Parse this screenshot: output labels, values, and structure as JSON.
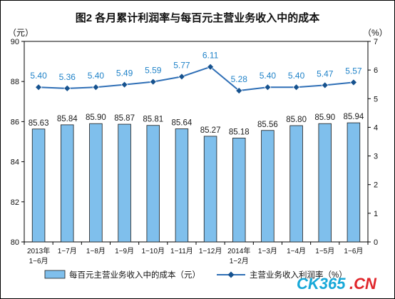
{
  "chart_data": {
    "type": "bar+line",
    "title": "图2  各月累计利润率与每百元主营业务收入中的成本",
    "left_axis": {
      "unit_label": "（元）",
      "ylim": [
        80,
        90
      ],
      "ticks": [
        "80",
        "82",
        "84",
        "86",
        "88",
        "90"
      ]
    },
    "right_axis": {
      "unit_label": "（%）",
      "ylim": [
        0,
        7
      ],
      "ticks": [
        "0",
        "1",
        "2",
        "3",
        "4",
        "5",
        "6",
        "7"
      ]
    },
    "categories": [
      [
        "2013年",
        "1−6月"
      ],
      [
        "1−7月"
      ],
      [
        "1−8月"
      ],
      [
        "1−9月"
      ],
      [
        "1−10月"
      ],
      [
        "1−11月"
      ],
      [
        "1−12月"
      ],
      [
        "2014年",
        "1−2月"
      ],
      [
        "1−3月"
      ],
      [
        "1−4月"
      ],
      [
        "1−5月"
      ],
      [
        "1−6月"
      ]
    ],
    "series": [
      {
        "name": "每百元主营业务收入中的成本（元）",
        "kind": "bar",
        "axis": "left",
        "color": "#7fbfec",
        "values": [
          85.63,
          85.84,
          85.9,
          85.87,
          85.81,
          85.64,
          85.27,
          85.18,
          85.56,
          85.8,
          85.9,
          85.94
        ],
        "labels": [
          "85.63",
          "85.84",
          "85.90",
          "85.87",
          "85.81",
          "85.64",
          "85.27",
          "85.18",
          "85.56",
          "85.80",
          "85.90",
          "85.94"
        ]
      },
      {
        "name": "主营业务收入利润率（%）",
        "kind": "line",
        "axis": "right",
        "color": "#2f6fb6",
        "values": [
          5.4,
          5.36,
          5.4,
          5.49,
          5.59,
          5.77,
          6.11,
          5.28,
          5.4,
          5.4,
          5.47,
          5.57
        ],
        "labels": [
          "5.40",
          "5.36",
          "5.40",
          "5.49",
          "5.59",
          "5.77",
          "6.11",
          "5.28",
          "5.40",
          "5.40",
          "5.47",
          "5.57"
        ]
      }
    ],
    "label_colors": {
      "bar": "#1a1a1a",
      "line": "#1f82c8"
    },
    "grid": false,
    "legend": "bottom"
  },
  "watermark": {
    "part_a": "CK365",
    "part_b": ".CN"
  }
}
